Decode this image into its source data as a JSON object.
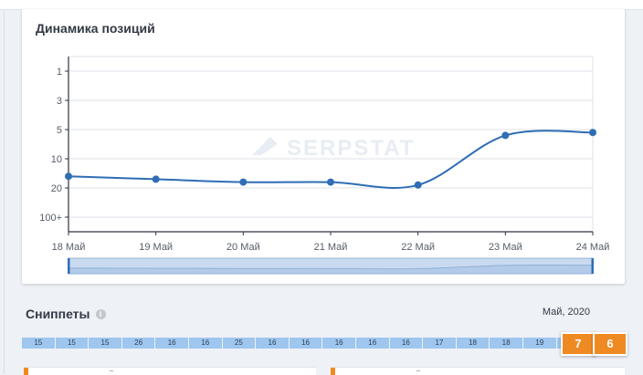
{
  "card_title": "Динамика позиций",
  "watermark": "SERPSTAT",
  "chart_data": {
    "type": "line",
    "title": "Динамика позиций",
    "y_axis": {
      "scale": "category",
      "inverted": true,
      "tick_labels": [
        "1",
        "3",
        "5",
        "10",
        "20",
        "100+"
      ]
    },
    "categories": [
      "18 Май",
      "19 Май",
      "20 Май",
      "21 Май",
      "22 Май",
      "23 Май",
      "24 Май"
    ],
    "series": [
      {
        "values": [
          16,
          17,
          18,
          18,
          19,
          6,
          5.5
        ],
        "color": "#2f6db5"
      }
    ],
    "grid": true,
    "legend": "none",
    "navigator": true
  },
  "snippets": {
    "title": "Сниппеты",
    "info_icon": "info-icon",
    "date": "Май, 2020",
    "cells": [
      "15",
      "15",
      "15",
      "26",
      "16",
      "16",
      "25",
      "16",
      "16",
      "16",
      "16",
      "16",
      "17",
      "18",
      "18",
      "19",
      "",
      ""
    ],
    "badges": [
      "7",
      "6"
    ],
    "badge_color": "#ef8a22"
  }
}
